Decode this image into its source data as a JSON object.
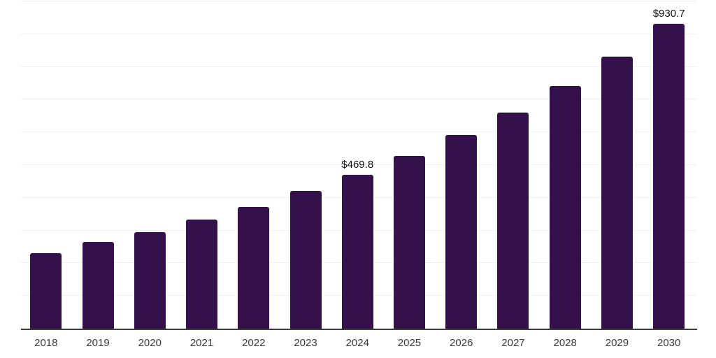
{
  "chart_data": {
    "type": "bar",
    "title": "",
    "xlabel": "",
    "ylabel": "",
    "categories": [
      "2018",
      "2019",
      "2020",
      "2021",
      "2022",
      "2023",
      "2024",
      "2025",
      "2026",
      "2027",
      "2028",
      "2029",
      "2030"
    ],
    "values": [
      230,
      264,
      294,
      333,
      371,
      420,
      469.8,
      527,
      591,
      661,
      742,
      832,
      930.7
    ],
    "data_labels": [
      "",
      "",
      "",
      "",
      "",
      "",
      "$469.8",
      "",
      "",
      "",
      "",
      "",
      "$930.7"
    ],
    "value_prefix": "$",
    "ylim": [
      0,
      1000
    ],
    "gridline_step": 100,
    "grid": "horizontal-only",
    "legend_position": "none",
    "bar_color": "#35114B",
    "axis_color": "#3d3d3d",
    "gridline_color": "#f2f2f2",
    "tick_label_color": "#3a3a3a",
    "data_label_color": "#111111"
  }
}
